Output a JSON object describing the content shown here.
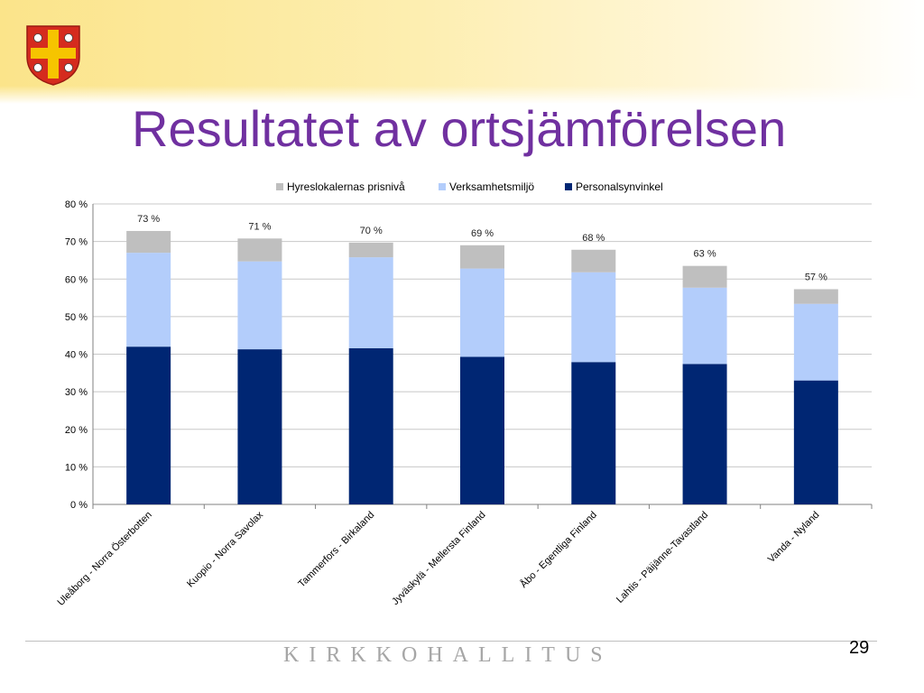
{
  "slide": {
    "title": "Resultatet av ortsjämförelsen",
    "footer": "KIRKKOHALLITUS",
    "page_number": "29"
  },
  "colors": {
    "title": "#7030a0",
    "series": [
      "#002673",
      "#b3cdfb",
      "#bfbfbf"
    ],
    "crest_red": "#d52b1e",
    "crest_gold": "#f6c400"
  },
  "icons": {
    "crest": "church-coat-of-arms-icon"
  },
  "chart_data": {
    "type": "bar",
    "stacked": true,
    "categories": [
      "Uleåborg - Norra Österbotten",
      "Kuopio - Norra Savolax",
      "Tammerfors - Birkaland",
      "Jyväskylä - Mellersta Finland",
      "Åbo - Egentliga Finland",
      "Lahtis - Päijänne-Tavastland",
      "Vanda - Nyland"
    ],
    "series": [
      {
        "name": "Personalsynvinkel",
        "values": [
          42,
          41.3,
          41.6,
          39.3,
          37.9,
          37.4,
          33
        ]
      },
      {
        "name": "Verksamhetsmiljö",
        "values": [
          25,
          23.4,
          24.2,
          23.5,
          23.9,
          20.3,
          20.4
        ]
      },
      {
        "name": "Hyreslokalernas prisnivå",
        "values": [
          5.8,
          6.1,
          3.9,
          6.2,
          6.0,
          5.8,
          3.9
        ]
      }
    ],
    "totals": [
      "73 %",
      "71 %",
      "70 %",
      "69 %",
      "68 %",
      "63 %",
      "57 %"
    ],
    "legend_order": [
      "Hyreslokalernas prisnivå",
      "Verksamhetsmiljö",
      "Personalsynvinkel"
    ],
    "legend_position": "top",
    "ylim": [
      0,
      80
    ],
    "yticks": [
      0,
      10,
      20,
      30,
      40,
      50,
      60,
      70,
      80
    ],
    "ytick_labels": [
      "0 %",
      "10 %",
      "20 %",
      "30 %",
      "40 %",
      "50 %",
      "60 %",
      "70 %",
      "80 %"
    ],
    "grid": true
  }
}
